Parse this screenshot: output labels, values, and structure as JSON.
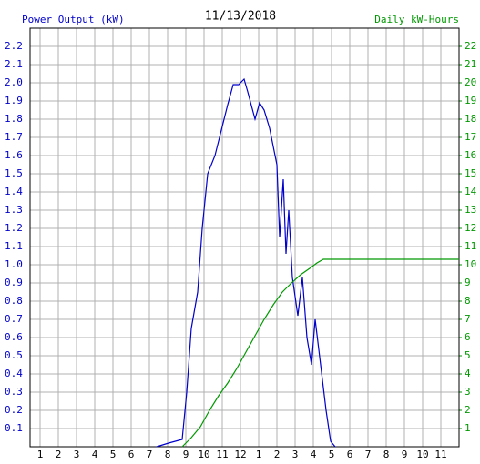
{
  "chart_data": {
    "type": "line",
    "title": "11/13/2018",
    "xlim": [
      0.45,
      24
    ],
    "ylim": [
      0,
      2.3
    ],
    "y2lim": [
      0,
      23
    ],
    "grid": true,
    "xticks": [
      1,
      2,
      3,
      4,
      5,
      6,
      7,
      8,
      9,
      10,
      11,
      12,
      {
        "value": 13,
        "label": "1"
      },
      {
        "value": 14,
        "label": "2"
      },
      {
        "value": 15,
        "label": "3"
      },
      {
        "value": 16,
        "label": "4"
      },
      {
        "value": 17,
        "label": "5"
      },
      {
        "value": 18,
        "label": "6"
      },
      {
        "value": 19,
        "label": "7"
      },
      {
        "value": 20,
        "label": "8"
      },
      {
        "value": 21,
        "label": "9"
      },
      {
        "value": 22,
        "label": "10"
      },
      {
        "value": 23,
        "label": "11"
      }
    ],
    "yticks": [
      0.1,
      0.2,
      0.3,
      0.4,
      0.5,
      0.6,
      0.7,
      0.8,
      0.9,
      {
        "value": 1,
        "label": "1.0"
      },
      1.1,
      1.2,
      1.3,
      1.4,
      1.5,
      1.6,
      1.7,
      1.8,
      1.9,
      {
        "value": 2,
        "label": "2.0"
      },
      2.1,
      2.2
    ],
    "y2ticks": [
      1,
      2,
      3,
      4,
      5,
      6,
      7,
      8,
      9,
      10,
      11,
      12,
      13,
      14,
      15,
      16,
      17,
      18,
      19,
      20,
      21,
      22
    ],
    "series": [
      {
        "name": "Power Output (kW)",
        "color": "#0000cc",
        "axis": "y",
        "x": [
          7.4,
          8.05,
          8.8,
          9.05,
          9.3,
          9.65,
          9.9,
          10.2,
          10.6,
          10.9,
          11.3,
          11.6,
          11.9,
          12.2,
          12.4,
          12.8,
          13.05,
          13.3,
          13.6,
          13.9,
          14.0,
          14.15,
          14.35,
          14.5,
          14.65,
          14.85,
          15.15,
          15.4,
          15.65,
          15.9,
          16.1,
          16.4,
          16.7,
          16.95,
          17.2
        ],
        "values": [
          0,
          0.02,
          0.04,
          0.3,
          0.65,
          0.85,
          1.2,
          1.5,
          1.6,
          1.72,
          1.88,
          1.99,
          1.99,
          2.02,
          1.95,
          1.8,
          1.89,
          1.85,
          1.75,
          1.6,
          1.55,
          1.15,
          1.47,
          1.06,
          1.3,
          0.93,
          0.72,
          0.93,
          0.6,
          0.45,
          0.7,
          0.45,
          0.2,
          0.03,
          0
        ]
      },
      {
        "name": "Daily kW-Hours",
        "color": "#009900",
        "axis": "y2",
        "x": [
          8.8,
          9.3,
          9.8,
          10.3,
          10.8,
          11.3,
          11.8,
          12.3,
          12.8,
          13.3,
          13.8,
          14.3,
          14.8,
          15.3,
          15.8,
          16.2,
          16.55,
          24
        ],
        "values": [
          0,
          0.5,
          1.1,
          2,
          2.8,
          3.5,
          4.3,
          5.2,
          6.1,
          7,
          7.8,
          8.5,
          9,
          9.45,
          9.8,
          10.1,
          10.3,
          10.3
        ]
      }
    ]
  }
}
